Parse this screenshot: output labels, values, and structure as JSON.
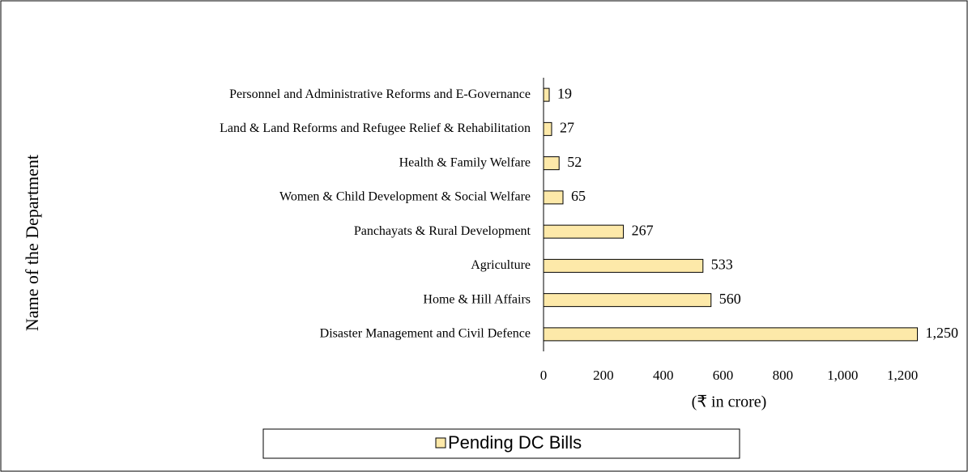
{
  "chart_data": {
    "type": "bar",
    "orientation": "horizontal",
    "categories": [
      "Personnel and Administrative Reforms and E-Governance",
      "Land & Land Reforms and Refugee Relief & Rehabilitation",
      "Health & Family Welfare",
      "Women & Child Development & Social Welfare",
      "Panchayats & Rural Development",
      "Agriculture",
      "Home & Hill Affairs",
      "Disaster Management and Civil Defence"
    ],
    "series": [
      {
        "name": "Pending DC Bills",
        "color": "#fde9a9",
        "values": [
          19,
          27,
          52,
          65,
          267,
          533,
          560,
          1250
        ],
        "value_labels": [
          "19",
          "27",
          "52",
          "65",
          "267",
          "533",
          "560",
          "1,250"
        ]
      }
    ],
    "xlim": [
      0,
      1300
    ],
    "xticks": [
      0,
      200,
      400,
      600,
      800,
      {
        "value": 1000,
        "label": "1,000"
      },
      {
        "value": 1200,
        "label": "1,200"
      }
    ],
    "xlabel": "(₹ in crore)",
    "ylabel": "Name of the Department",
    "legend": "bottom"
  }
}
